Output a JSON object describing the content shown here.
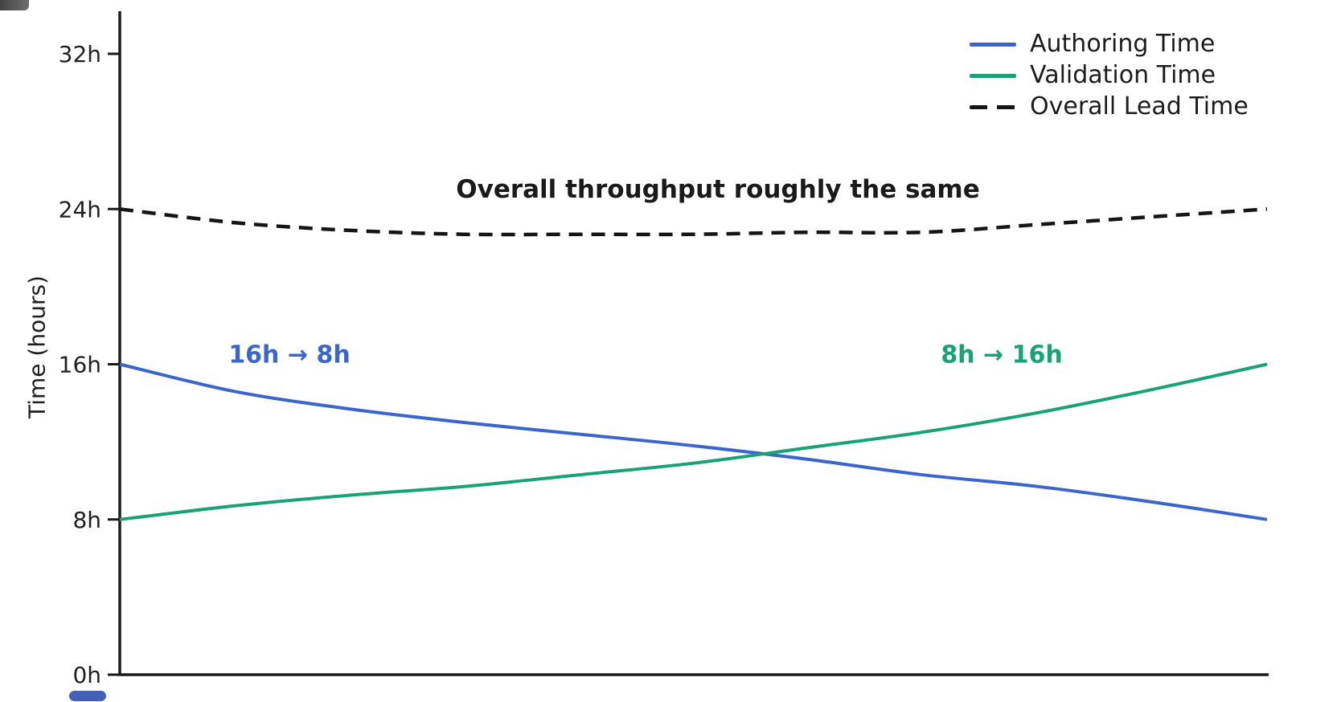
{
  "chart_data": {
    "type": "line",
    "title": "",
    "xlabel": "",
    "ylabel": "Time (hours)",
    "ylim": [
      0,
      32
    ],
    "xlim": [
      0,
      1
    ],
    "grid": false,
    "legend_position": "upper right",
    "yticks": [
      {
        "v": 0,
        "label": "0h"
      },
      {
        "v": 8,
        "label": "8h"
      },
      {
        "v": 16,
        "label": "16h"
      },
      {
        "v": 24,
        "label": "24h"
      },
      {
        "v": 32,
        "label": "32h"
      }
    ],
    "xticks": [],
    "x": [
      0,
      0.1,
      0.2,
      0.3,
      0.4,
      0.5,
      0.6,
      0.7,
      0.8,
      0.9,
      1
    ],
    "series": [
      {
        "name": "Authoring Time",
        "color": "#3a66cc",
        "style": "solid",
        "width": 4,
        "values": [
          16.0,
          14.6,
          13.7,
          13.0,
          12.4,
          11.8,
          11.1,
          10.3,
          9.7,
          8.9,
          8.0
        ]
      },
      {
        "name": "Validation Time",
        "color": "#17a374",
        "style": "solid",
        "width": 4,
        "values": [
          8.0,
          8.7,
          9.25,
          9.7,
          10.3,
          10.9,
          11.7,
          12.5,
          13.5,
          14.7,
          16.0
        ]
      },
      {
        "name": "Overall Lead Time",
        "color": "#151515",
        "style": "dashed",
        "width": 4.5,
        "values": [
          24.0,
          23.3,
          22.9,
          22.7,
          22.7,
          22.7,
          22.8,
          22.8,
          23.2,
          23.6,
          24.0
        ]
      }
    ],
    "annotations": [
      {
        "text": "16h → 8h",
        "color": "#3a66cc",
        "refers_to": "Authoring Time"
      },
      {
        "text": "8h → 16h",
        "color": "#17a374",
        "refers_to": "Validation Time"
      },
      {
        "text": "Overall throughput roughly the same",
        "color": "#1a1a1a",
        "refers_to": "Overall Lead Time"
      }
    ],
    "axis_color": "#1a1a1a"
  }
}
